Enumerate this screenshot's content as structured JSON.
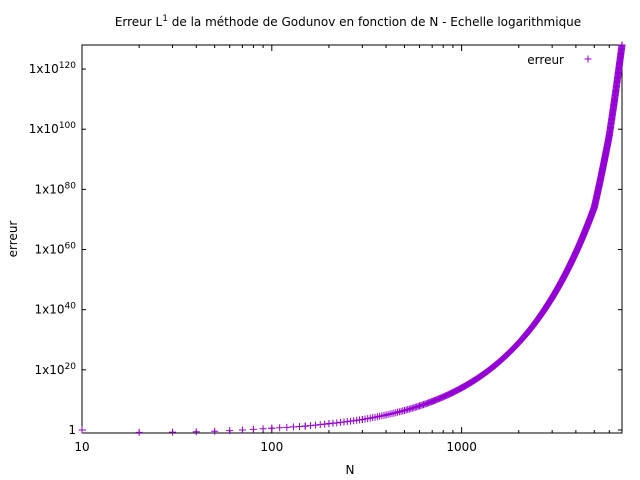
{
  "chart_data": {
    "type": "scatter",
    "title": {
      "before": "Erreur L",
      "superscript": "1",
      "after": " de la méthode de Godunov en fonction de N -  Echelle logarithmique"
    },
    "xlabel": "N",
    "ylabel": "erreur",
    "x_scale": "log",
    "y_scale": "log",
    "xlim": [
      10,
      7000
    ],
    "ylim_log10": [
      -1,
      128
    ],
    "x_ticks": [
      {
        "value": 10,
        "label": "10"
      },
      {
        "value": 100,
        "label": "100"
      },
      {
        "value": 1000,
        "label": "1000"
      }
    ],
    "y_ticks": [
      {
        "log10": 0,
        "label": "1",
        "exponent": ""
      },
      {
        "log10": 20,
        "label": "1x10",
        "exponent": "20"
      },
      {
        "log10": 40,
        "label": "1x10",
        "exponent": "40"
      },
      {
        "log10": 60,
        "label": "1x10",
        "exponent": "60"
      },
      {
        "log10": 80,
        "label": "1x10",
        "exponent": "80"
      },
      {
        "log10": 100,
        "label": "1x10",
        "exponent": "100"
      },
      {
        "log10": 120,
        "label": "1x10",
        "exponent": "120"
      }
    ],
    "grid": false,
    "legend": {
      "position": "top-right",
      "entries": [
        "erreur"
      ]
    },
    "series": [
      {
        "name": "erreur",
        "marker": "+",
        "color": "#9400d3",
        "x": [
          10,
          20,
          30,
          40,
          50,
          60,
          70,
          80,
          90,
          100,
          150,
          200,
          300,
          400,
          500,
          700,
          1000,
          1500,
          2000,
          3000,
          4000,
          5000,
          6000,
          7000
        ],
        "log10_y": [
          0,
          -0.8,
          -0.7,
          -0.6,
          -0.4,
          -0.2,
          0,
          0.2,
          0.4,
          0.6,
          1.3,
          2.1,
          3.5,
          5.0,
          6.5,
          9.5,
          14.0,
          21.5,
          29.0,
          44.0,
          59.0,
          74.0,
          98.0,
          128.0
        ]
      }
    ]
  }
}
